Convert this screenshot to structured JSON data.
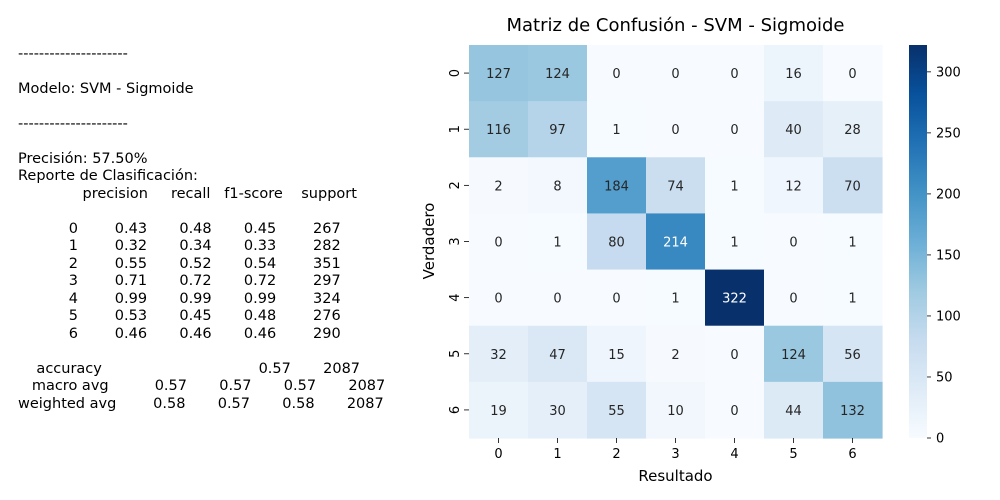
{
  "report": {
    "lines": [
      "---------------------",
      "",
      "Modelo: SVM - Sigmoide",
      "",
      "---------------------",
      "",
      "Precisión: 57.50%",
      "Reporte de Clasificación:",
      "              precision     recall   f1-score    support",
      "",
      "           0        0.43       0.48       0.45        267",
      "           1        0.32       0.34       0.33        282",
      "           2        0.55       0.52       0.54        351",
      "           3        0.71       0.72       0.72        297",
      "           4        0.99       0.99       0.99        324",
      "           5        0.53       0.45       0.48        276",
      "           6        0.46       0.46       0.46        290",
      "",
      "    accuracy                                  0.57       2087",
      "   macro avg          0.57       0.57       0.57       2087",
      "weighted avg        0.58       0.57       0.58       2087"
    ]
  },
  "chart_data": {
    "type": "heatmap",
    "title": "Matriz de Confusión - SVM - Sigmoide",
    "xlabel": "Resultado",
    "ylabel": "Verdadero",
    "x_categories": [
      "0",
      "1",
      "2",
      "3",
      "4",
      "5",
      "6"
    ],
    "y_categories": [
      "0",
      "1",
      "2",
      "3",
      "4",
      "5",
      "6"
    ],
    "values": [
      [
        127,
        124,
        0,
        0,
        0,
        16,
        0
      ],
      [
        116,
        97,
        1,
        0,
        0,
        40,
        28
      ],
      [
        2,
        8,
        184,
        74,
        1,
        12,
        70
      ],
      [
        0,
        1,
        80,
        214,
        1,
        0,
        1
      ],
      [
        0,
        0,
        0,
        1,
        322,
        0,
        1
      ],
      [
        32,
        47,
        15,
        2,
        0,
        124,
        56
      ],
      [
        19,
        30,
        55,
        10,
        0,
        44,
        132
      ]
    ],
    "colormap": "Blues",
    "colorbar": {
      "min": 0,
      "max": 322,
      "ticks": [
        0,
        50,
        100,
        150,
        200,
        250,
        300
      ]
    }
  }
}
